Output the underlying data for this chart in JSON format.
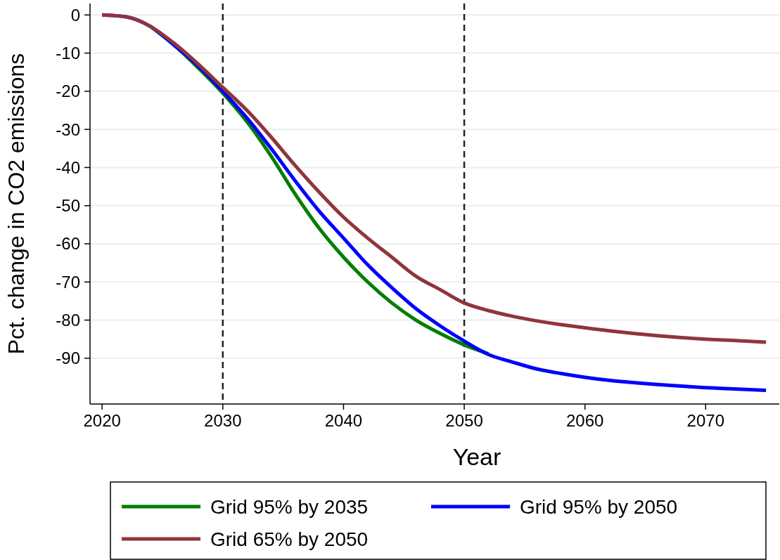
{
  "chart_data": {
    "type": "line",
    "xlabel": "Year",
    "ylabel": "Pct. change in CO2 emissions",
    "xlim": [
      2019,
      2076.1
    ],
    "ylim": [
      -102,
      3
    ],
    "xticks": [
      2020,
      2030,
      2040,
      2050,
      2060,
      2070
    ],
    "yticks": [
      0,
      -10,
      -20,
      -30,
      -40,
      -50,
      -60,
      -70,
      -80,
      -90
    ],
    "grid": "y",
    "legend": "bottom",
    "line_style": "solid",
    "marker": "none",
    "x": [
      2020,
      2022,
      2024,
      2026,
      2028,
      2030,
      2032,
      2034,
      2036,
      2038,
      2040,
      2042,
      2044,
      2046,
      2048,
      2050,
      2052,
      2054,
      2056,
      2058,
      2060,
      2062,
      2064,
      2066,
      2068,
      2070,
      2072,
      2075
    ],
    "series": [
      {
        "name": "Grid 95% by 2035",
        "color": "#007f00",
        "values": [
          null,
          null,
          -3,
          -8,
          -14,
          -20.5,
          -28,
          -37,
          -47,
          -56,
          -63.5,
          -70,
          -75.5,
          -80,
          -83.5,
          -86.5,
          -88.8,
          null,
          null,
          null,
          null,
          null,
          null,
          null,
          null,
          null,
          null,
          null
        ]
      },
      {
        "name": "Grid 95% by 2050",
        "color": "#0000ff",
        "values": [
          0,
          -0.5,
          -3,
          -8,
          -13.5,
          -20,
          -27,
          -35,
          -43.5,
          -51.5,
          -58.5,
          -65.5,
          -71.5,
          -77,
          -81.5,
          -85.5,
          -89,
          -91,
          -92.8,
          -94,
          -95,
          -95.8,
          -96.4,
          -96.9,
          -97.3,
          -97.7,
          -98,
          -98.4
        ]
      },
      {
        "name": "Grid 65% by 2050",
        "color": "#90353b",
        "values": [
          0,
          -0.5,
          -3,
          -7.5,
          -13,
          -19,
          -25,
          -32,
          -39.5,
          -46.5,
          -53,
          -58.5,
          -63.5,
          -68.5,
          -72,
          -75.5,
          -77.5,
          -79,
          -80.2,
          -81.2,
          -82,
          -82.8,
          -83.5,
          -84.1,
          -84.6,
          -85,
          -85.3,
          -85.8
        ]
      }
    ],
    "ref_lines": [
      {
        "axis": "x",
        "value": 2030,
        "color": "#222222",
        "line_style": "dashed"
      },
      {
        "axis": "x",
        "value": 2050,
        "color": "#222222",
        "line_style": "dashed"
      }
    ]
  }
}
